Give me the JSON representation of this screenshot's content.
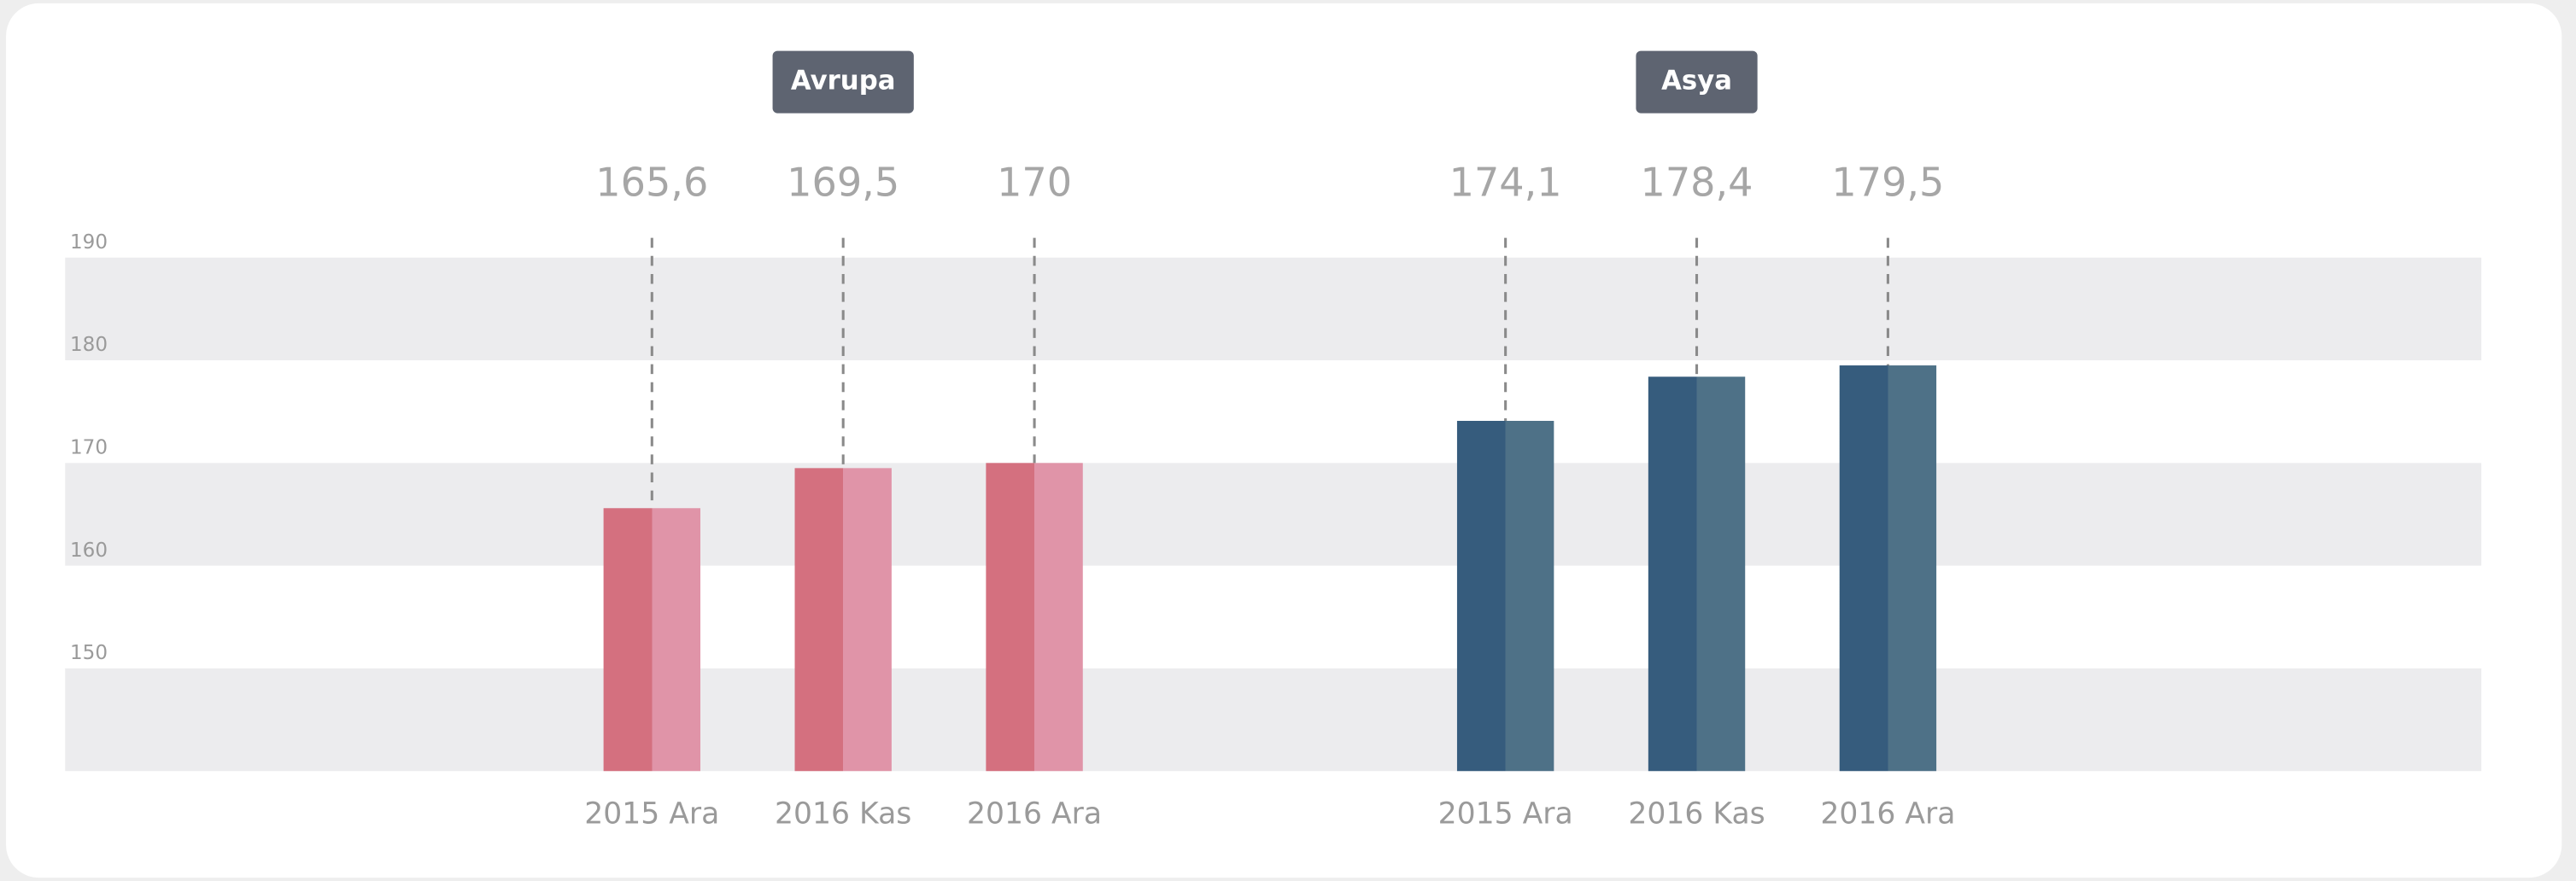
{
  "chart_data": {
    "type": "bar",
    "ylim": [
      140,
      190
    ],
    "yticks": [
      150,
      160,
      170,
      180,
      190
    ],
    "grid": true,
    "groups": [
      {
        "name": "Avrupa",
        "color": "#d4707f",
        "light_color": "#e094a8",
        "categories": [
          "2015 Ara",
          "2016 Kas",
          "2016 Ara"
        ],
        "values": [
          165.6,
          169.5,
          170
        ],
        "value_labels": [
          "165,6",
          "169,5",
          "170"
        ]
      },
      {
        "name": "Asya",
        "color": "#365c7d",
        "light_color": "#4e7187",
        "categories": [
          "2015 Ara",
          "2016 Kas",
          "2016 Ara"
        ],
        "values": [
          174.1,
          178.4,
          179.5
        ],
        "value_labels": [
          "174,1",
          "178,4",
          "179,5"
        ]
      }
    ]
  }
}
